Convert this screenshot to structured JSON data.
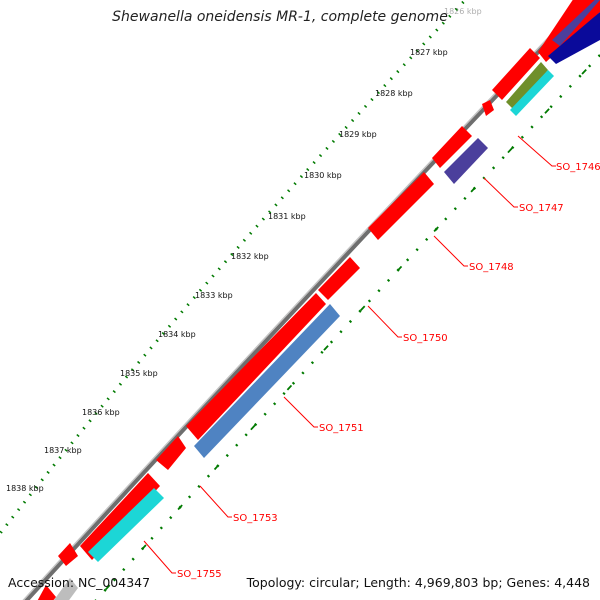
{
  "title": "Shewanella oneidensis MR-1, complete genome",
  "footer": {
    "accession": "Accession: NC_004347",
    "summary": "Topology: circular; Length: 4,969,803 bp; Genes: 4,448"
  },
  "kbp_ticks": [
    {
      "label": "1826 kbp"
    },
    {
      "label": "1827 kbp"
    },
    {
      "label": "1828 kbp"
    },
    {
      "label": "1829 kbp"
    },
    {
      "label": "1830 kbp"
    },
    {
      "label": "1831 kbp"
    },
    {
      "label": "1832 kbp"
    },
    {
      "label": "1833 kbp"
    },
    {
      "label": "1834 kbp"
    },
    {
      "label": "1835 kbp"
    },
    {
      "label": "1836 kbp"
    },
    {
      "label": "1837 kbp"
    },
    {
      "label": "1838 kbp"
    }
  ],
  "gene_labels": [
    {
      "label": "SO_1746"
    },
    {
      "label": "SO_1747"
    },
    {
      "label": "SO_1748"
    },
    {
      "label": "SO_1750"
    },
    {
      "label": "SO_1751"
    },
    {
      "label": "SO_1753"
    },
    {
      "label": "SO_1755"
    }
  ],
  "colors": {
    "backbone": "#8a8a8a",
    "cds": "#ff0000",
    "tick": "#007a00",
    "label": "#ff0000",
    "steel_blue": "#4f83c2",
    "slate": "#4b3f9c",
    "cyan": "#1cd6d6",
    "olive": "#6f8f2a",
    "navy": "#0a0a9a"
  }
}
